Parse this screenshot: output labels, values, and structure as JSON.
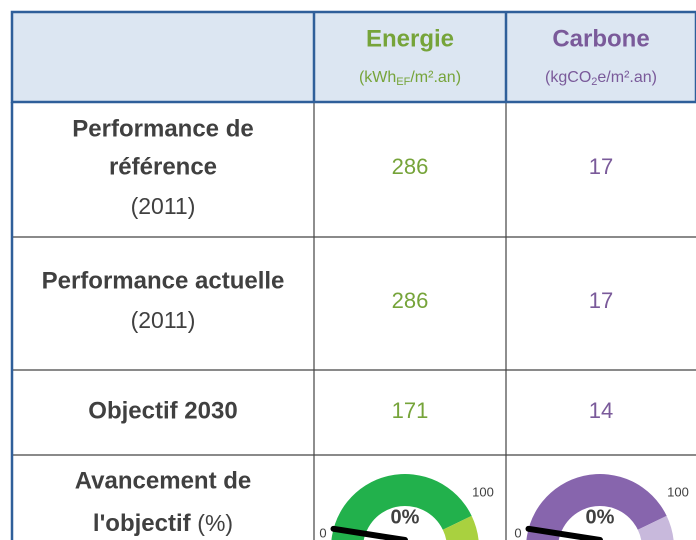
{
  "table": {
    "columns": [
      {
        "title": "Energie",
        "unit": [
          "(kWh",
          "EF",
          "/m².an)"
        ]
      },
      {
        "title": "Carbone",
        "unit": [
          "(kgCO",
          "2",
          "e/m².an)"
        ]
      }
    ],
    "rows": [
      {
        "label": [
          "Performance de",
          "référence"
        ],
        "note": "(2011)",
        "cells": [
          "286",
          "17"
        ]
      },
      {
        "label": [
          "Performance actuelle"
        ],
        "note": "(2011)",
        "cells": [
          "286",
          "17"
        ]
      },
      {
        "label": [
          "Objectif 2030"
        ],
        "cells": [
          "171",
          "14"
        ]
      },
      {
        "label": [
          "Avancement de",
          "l'objectif"
        ],
        "note": "(%)",
        "gauges": [
          {
            "min": 0,
            "max": 100,
            "value": 0,
            "value_label": "0%"
          },
          {
            "min": 0,
            "max": 100,
            "value": 0,
            "value_label": "0%"
          }
        ]
      }
    ]
  }
}
